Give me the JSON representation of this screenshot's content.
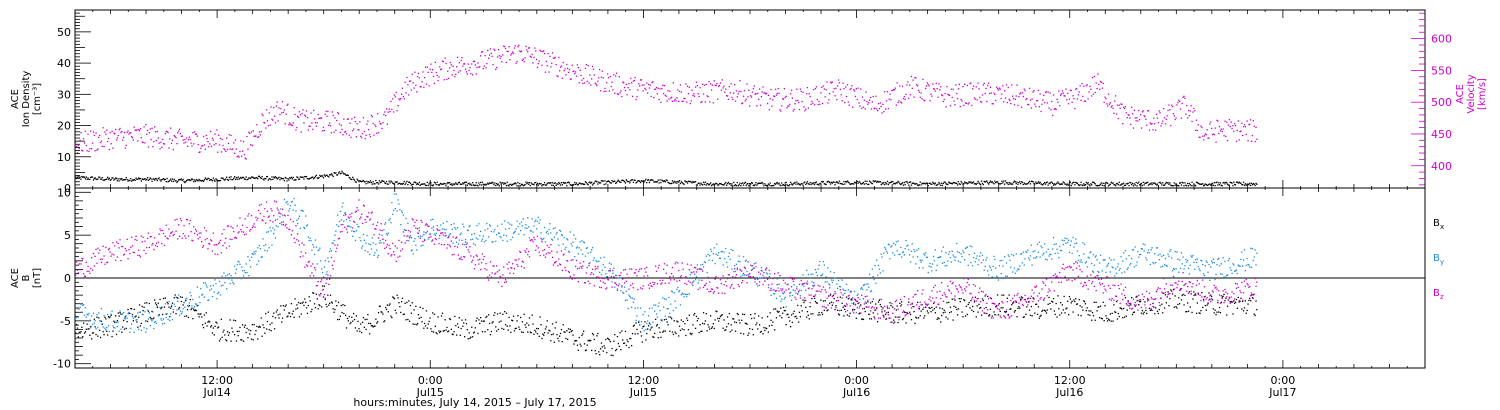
{
  "xaxis": {
    "title": "hours:minutes, July 14, 2015 – July 17, 2015",
    "ticks": [
      {
        "hour": 12,
        "label1": "12:00",
        "label2": "Jul14"
      },
      {
        "hour": 24,
        "label1": "0:00",
        "label2": "Jul15"
      },
      {
        "hour": 36,
        "label1": "12:00",
        "label2": "Jul15"
      },
      {
        "hour": 48,
        "label1": "0:00",
        "label2": "Jul16"
      },
      {
        "hour": 60,
        "label1": "12:00",
        "label2": "Jul16"
      },
      {
        "hour": 72,
        "label1": "0:00",
        "label2": "Jul17"
      }
    ]
  },
  "colors": {
    "black": "#000000",
    "magenta": "#cc00cc",
    "blue": "#1a8ce6"
  },
  "chart_data": [
    {
      "type": "scatter",
      "ylabel_left": [
        "ACE",
        "Ion Density",
        "[cm⁻³]"
      ],
      "ylabel_right": [
        "ACE",
        "Velocity",
        "[km/s]"
      ],
      "xlim_hours": [
        4,
        80
      ],
      "ylim_left": [
        0,
        57
      ],
      "ylim_right": [
        365,
        645
      ],
      "yticks_left": [
        0,
        10,
        20,
        30,
        40,
        50
      ],
      "yticks_right": [
        400,
        450,
        500,
        550,
        600
      ],
      "series": [
        {
          "key": "density",
          "axis": "left",
          "color": "black",
          "x": [
            4,
            6,
            8,
            10,
            12,
            14,
            16,
            18,
            19,
            20,
            22,
            24,
            28,
            32,
            36,
            40,
            44,
            48,
            52,
            56,
            60,
            64,
            68,
            70.5
          ],
          "y": [
            3.5,
            3,
            3,
            2.5,
            3,
            3.5,
            3,
            4,
            5,
            2,
            2,
            1.5,
            1.5,
            1.5,
            2.5,
            1.5,
            1.5,
            2,
            1.5,
            2,
            1.5,
            1.5,
            1.5,
            1.5
          ]
        },
        {
          "key": "velocity",
          "axis": "right",
          "color": "magenta",
          "x": [
            4,
            6,
            8,
            10,
            12,
            13.5,
            14.5,
            15.5,
            16.5,
            17.5,
            18.5,
            20,
            21.5,
            22.5,
            23.5,
            25,
            27,
            29,
            31,
            33,
            35,
            37,
            39,
            41,
            43,
            45,
            47,
            49,
            51,
            53,
            55,
            57,
            59,
            60.5,
            61.5,
            63,
            65,
            66.5,
            67.5,
            68.5,
            70.5
          ],
          "y": [
            435,
            445,
            448,
            440,
            440,
            425,
            470,
            490,
            472,
            470,
            470,
            458,
            475,
            520,
            540,
            555,
            565,
            580,
            560,
            540,
            525,
            518,
            515,
            520,
            505,
            505,
            520,
            495,
            525,
            510,
            515,
            510,
            498,
            510,
            530,
            480,
            470,
            495,
            450,
            458,
            455
          ]
        }
      ]
    },
    {
      "type": "scatter",
      "ylabel_left": [
        "ACE",
        "B",
        "[nT]"
      ],
      "xlim_hours": [
        4,
        80
      ],
      "ylim_left": [
        -10.5,
        10.5
      ],
      "yticks_left": [
        -10,
        -5,
        0,
        5,
        10
      ],
      "legend": [
        {
          "label": "B",
          "sub": "x",
          "color": "black"
        },
        {
          "label": "B",
          "sub": "y",
          "color": "blue"
        },
        {
          "label": "B",
          "sub": "z",
          "color": "magenta"
        }
      ],
      "series": [
        {
          "key": "Bx",
          "color": "black",
          "x": [
            4,
            6,
            8,
            10,
            12,
            14,
            16,
            18,
            20,
            22,
            24,
            26,
            28,
            30,
            32,
            34,
            36,
            38,
            40,
            42,
            44,
            46,
            48,
            50,
            52,
            54,
            56,
            58,
            60,
            62,
            64,
            66,
            68,
            70.5
          ],
          "y": [
            -6,
            -5.5,
            -4,
            -3,
            -6,
            -6,
            -4,
            -2,
            -6,
            -3,
            -5,
            -6,
            -5,
            -5.5,
            -7,
            -8,
            -6,
            -5.5,
            -5,
            -5.5,
            -4.5,
            -3,
            -3.5,
            -4,
            -4,
            -3.5,
            -3,
            -3.5,
            -3,
            -4,
            -3,
            -2.5,
            -3,
            -3
          ]
        },
        {
          "key": "By",
          "color": "blue",
          "x": [
            4,
            6,
            8,
            10,
            12,
            14,
            15,
            16,
            17,
            18,
            19,
            20,
            21,
            22,
            23,
            24,
            26,
            28,
            30,
            32,
            34,
            36,
            38,
            40,
            42,
            44,
            46,
            48,
            50,
            52,
            54,
            56,
            58,
            60,
            62,
            64,
            66,
            68,
            70.5
          ],
          "y": [
            -4,
            -5,
            -5,
            -3,
            -1,
            2,
            5,
            9,
            6,
            1,
            8,
            5,
            3,
            9,
            4,
            6,
            5,
            5.5,
            6,
            4,
            1,
            -5,
            -2,
            3,
            1,
            -2,
            1,
            -3,
            4,
            2,
            3,
            1,
            3,
            4,
            1,
            3,
            2,
            1,
            2.5
          ]
        },
        {
          "key": "Bz",
          "color": "magenta",
          "x": [
            4,
            6,
            8,
            10,
            12,
            14,
            15,
            16,
            17,
            18,
            19,
            20,
            21,
            22,
            23,
            24,
            26,
            28,
            30,
            32,
            34,
            36,
            38,
            40,
            42,
            44,
            46,
            48,
            50,
            52,
            54,
            56,
            58,
            60,
            62,
            64,
            66,
            68,
            70.5
          ],
          "y": [
            1,
            3,
            4,
            6,
            4,
            7,
            8,
            7,
            2,
            -2,
            6,
            8,
            6,
            3,
            6,
            5,
            3,
            0,
            4,
            1,
            0,
            0,
            1,
            -1,
            1,
            -1,
            -2,
            -3,
            -4,
            -2,
            -1,
            -4,
            -2,
            1,
            -1,
            -3,
            0,
            -2,
            -1
          ]
        }
      ]
    }
  ]
}
